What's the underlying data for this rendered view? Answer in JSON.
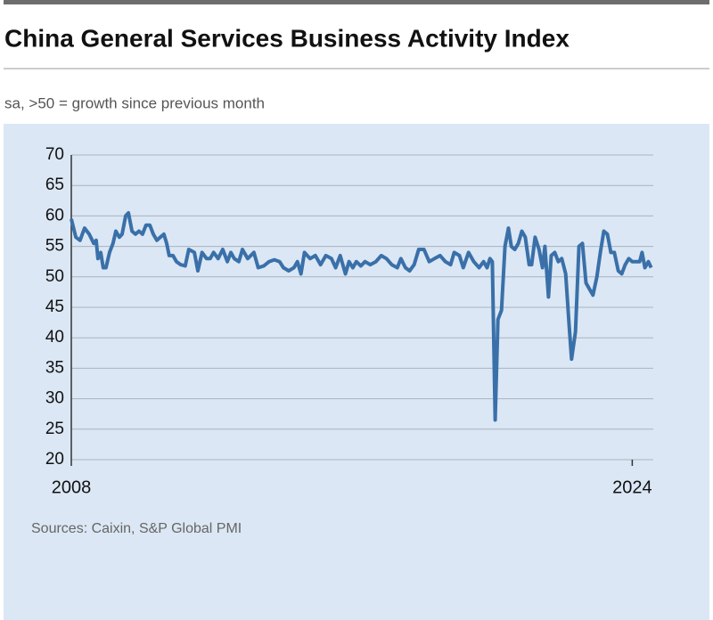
{
  "chart_data": {
    "type": "line",
    "title": "China General Services Business Activity Index",
    "subtitle": "sa, >50 = growth since previous month",
    "source": "Sources: Caixin, S&P Global PMI",
    "xlim": [
      2008,
      2024.6
    ],
    "xticks": [
      2008,
      2024
    ],
    "ylim": [
      20,
      70
    ],
    "yticks": [
      20,
      25,
      30,
      35,
      40,
      45,
      50,
      55,
      60,
      65,
      70
    ],
    "grid": true,
    "x": [
      2008.0,
      2008.13,
      2008.25,
      2008.38,
      2008.51,
      2008.64,
      2008.71,
      2008.76,
      2008.84,
      2008.91,
      2008.99,
      2009.09,
      2009.19,
      2009.27,
      2009.37,
      2009.45,
      2009.55,
      2009.63,
      2009.73,
      2009.83,
      2009.93,
      2010.03,
      2010.13,
      2010.24,
      2010.34,
      2010.44,
      2010.54,
      2010.64,
      2010.72,
      2010.79,
      2010.9,
      2011.0,
      2011.12,
      2011.25,
      2011.35,
      2011.51,
      2011.61,
      2011.73,
      2011.86,
      2011.96,
      2012.06,
      2012.19,
      2012.32,
      2012.45,
      2012.55,
      2012.65,
      2012.78,
      2012.88,
      2013.03,
      2013.21,
      2013.33,
      2013.49,
      2013.64,
      2013.79,
      2013.94,
      2014.05,
      2014.2,
      2014.35,
      2014.45,
      2014.55,
      2014.65,
      2014.81,
      2014.96,
      2015.11,
      2015.26,
      2015.42,
      2015.54,
      2015.67,
      2015.82,
      2015.92,
      2016.03,
      2016.13,
      2016.26,
      2016.38,
      2016.53,
      2016.69,
      2016.84,
      2016.99,
      2017.14,
      2017.3,
      2017.4,
      2017.53,
      2017.65,
      2017.78,
      2017.91,
      2018.06,
      2018.21,
      2018.36,
      2018.52,
      2018.67,
      2018.82,
      2018.92,
      2019.07,
      2019.18,
      2019.33,
      2019.48,
      2019.63,
      2019.76,
      2019.86,
      2019.94,
      2020.01,
      2020.09,
      2020.17,
      2020.27,
      2020.37,
      2020.47,
      2020.55,
      2020.65,
      2020.75,
      2020.85,
      2020.95,
      2021.06,
      2021.13,
      2021.23,
      2021.34,
      2021.44,
      2021.51,
      2021.61,
      2021.69,
      2021.79,
      2021.89,
      2021.99,
      2022.1,
      2022.2,
      2022.27,
      2022.38,
      2022.48,
      2022.58,
      2022.68,
      2022.78,
      2022.88,
      2022.99,
      2023.09,
      2023.19,
      2023.29,
      2023.39,
      2023.49,
      2023.6,
      2023.7,
      2023.8,
      2023.9,
      2024.0,
      2024.1,
      2024.21,
      2024.28,
      2024.36,
      2024.46,
      2024.54
    ],
    "series": [
      {
        "name": "Business Activity Index",
        "color": "#3a70a9",
        "values": [
          59.5,
          56.5,
          56,
          58,
          57,
          55.5,
          56,
          53,
          54,
          51.5,
          51.5,
          54,
          55.5,
          57.5,
          56.5,
          57,
          60,
          60.5,
          57.5,
          57,
          57.5,
          57,
          58.5,
          58.5,
          57,
          56,
          56.5,
          57,
          55.5,
          53.5,
          53.5,
          52.5,
          52,
          51.8,
          54.5,
          54,
          51,
          54,
          53,
          53,
          54,
          53,
          54.5,
          52.5,
          54,
          53,
          52.5,
          54.5,
          53,
          54,
          51.5,
          51.8,
          52.5,
          52.8,
          52.5,
          51.5,
          51,
          51.5,
          52.5,
          50.5,
          54,
          53,
          53.5,
          52,
          53.5,
          53,
          51.5,
          53.5,
          50.5,
          52.5,
          51.5,
          52.5,
          51.8,
          52.5,
          52,
          52.5,
          53.5,
          53,
          52,
          51.5,
          53,
          51.5,
          51,
          52,
          54.5,
          54.5,
          52.5,
          53,
          53.5,
          52.5,
          52,
          54,
          53.5,
          51.5,
          54,
          52.5,
          51.5,
          52.5,
          51.5,
          53,
          52.5,
          26.5,
          43,
          44.5,
          55,
          58,
          55,
          54.5,
          55.5,
          57.5,
          56.5,
          52,
          52,
          56.5,
          54.5,
          51.5,
          55,
          46.7,
          53.5,
          54,
          52.5,
          53,
          50.5,
          42,
          36.5,
          41,
          55,
          55.5,
          49,
          48,
          47,
          50,
          54,
          57.5,
          57,
          54,
          54,
          51,
          50.5,
          52,
          53,
          52.5,
          52.5,
          52.5,
          54,
          51.5,
          52.5,
          51.5
        ]
      }
    ]
  }
}
